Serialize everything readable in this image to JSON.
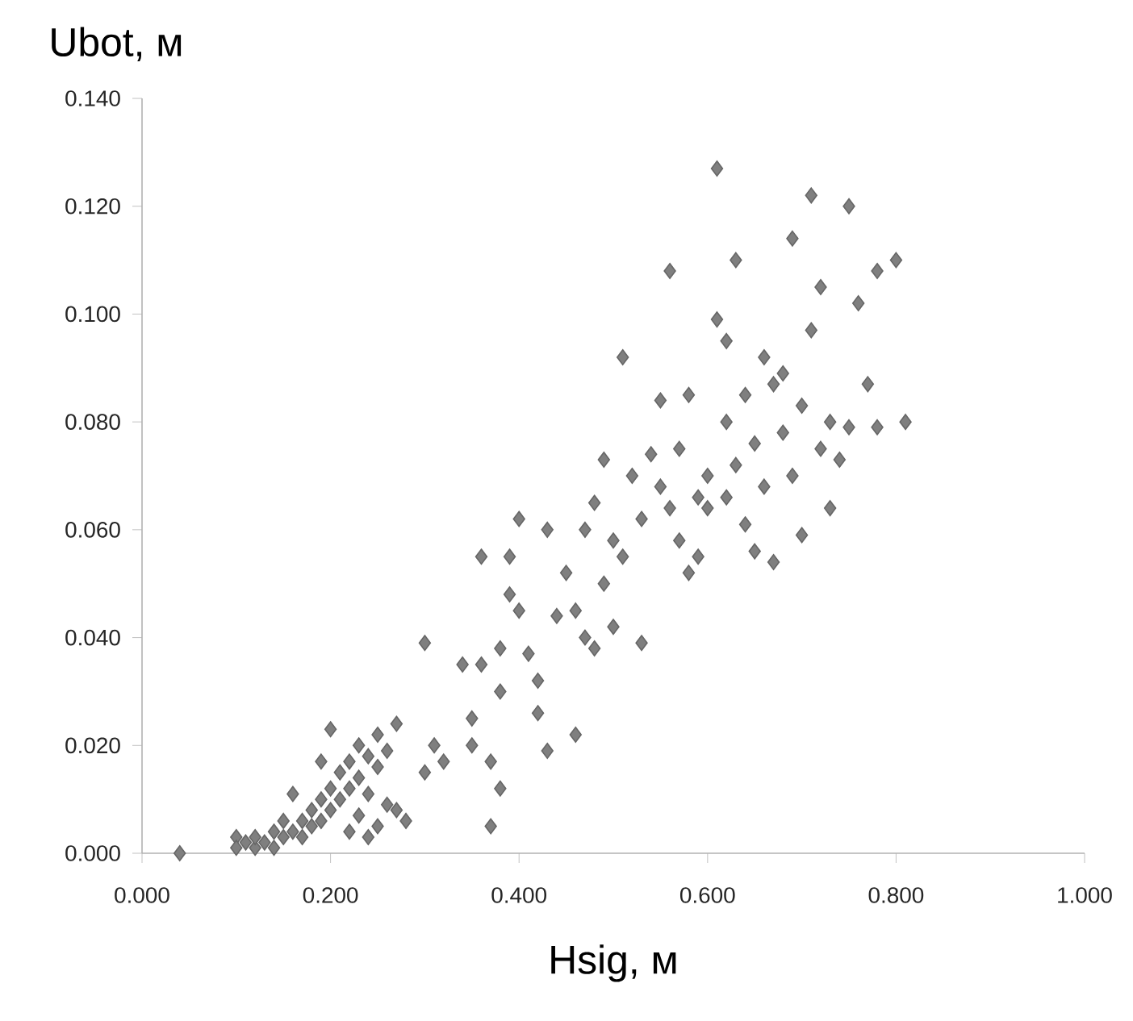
{
  "chart_data": {
    "type": "scatter",
    "xlabel": "Hsig, м",
    "ylabel": "Ubot, м",
    "color": "#7f7f7f",
    "marker": "diamond",
    "xlim": [
      0,
      1
    ],
    "ylim": [
      0,
      0.14
    ],
    "xticks": [
      {
        "value": 0,
        "label": "0.000"
      },
      {
        "value": 0.2,
        "label": "0.200"
      },
      {
        "value": 0.4,
        "label": "0.400"
      },
      {
        "value": 0.6,
        "label": "0.600"
      },
      {
        "value": 0.8,
        "label": "0.800"
      },
      {
        "value": 1,
        "label": "1.000"
      }
    ],
    "yticks": [
      {
        "value": 0,
        "label": "0.000"
      },
      {
        "value": 0.02,
        "label": "0.020"
      },
      {
        "value": 0.04,
        "label": "0.040"
      },
      {
        "value": 0.06,
        "label": "0.060"
      },
      {
        "value": 0.08,
        "label": "0.080"
      },
      {
        "value": 0.1,
        "label": "0.100"
      },
      {
        "value": 0.12,
        "label": "0.120"
      },
      {
        "value": 0.14,
        "label": "0.140"
      }
    ],
    "x": [
      0.04,
      0.1,
      0.1,
      0.11,
      0.12,
      0.12,
      0.13,
      0.14,
      0.14,
      0.15,
      0.15,
      0.16,
      0.16,
      0.17,
      0.17,
      0.18,
      0.18,
      0.19,
      0.19,
      0.2,
      0.2,
      0.2,
      0.21,
      0.21,
      0.22,
      0.22,
      0.23,
      0.23,
      0.24,
      0.24,
      0.25,
      0.25,
      0.24,
      0.25,
      0.26,
      0.26,
      0.27,
      0.27,
      0.28,
      0.23,
      0.22,
      0.19,
      0.3,
      0.3,
      0.31,
      0.32,
      0.34,
      0.35,
      0.35,
      0.36,
      0.36,
      0.37,
      0.38,
      0.37,
      0.38,
      0.38,
      0.39,
      0.39,
      0.4,
      0.4,
      0.41,
      0.42,
      0.42,
      0.43,
      0.43,
      0.44,
      0.45,
      0.46,
      0.46,
      0.47,
      0.47,
      0.48,
      0.48,
      0.49,
      0.49,
      0.5,
      0.5,
      0.51,
      0.51,
      0.52,
      0.53,
      0.53,
      0.54,
      0.55,
      0.55,
      0.56,
      0.56,
      0.57,
      0.57,
      0.58,
      0.58,
      0.59,
      0.59,
      0.6,
      0.6,
      0.61,
      0.61,
      0.62,
      0.62,
      0.62,
      0.63,
      0.63,
      0.64,
      0.64,
      0.65,
      0.65,
      0.66,
      0.66,
      0.67,
      0.67,
      0.68,
      0.68,
      0.69,
      0.69,
      0.7,
      0.7,
      0.71,
      0.71,
      0.72,
      0.72,
      0.73,
      0.73,
      0.74,
      0.75,
      0.75,
      0.76,
      0.77,
      0.78,
      0.78,
      0.8,
      0.81
    ],
    "values": [
      0.0,
      0.003,
      0.001,
      0.002,
      0.001,
      0.003,
      0.002,
      0.004,
      0.001,
      0.003,
      0.006,
      0.004,
      0.011,
      0.006,
      0.003,
      0.008,
      0.005,
      0.01,
      0.006,
      0.012,
      0.008,
      0.023,
      0.015,
      0.01,
      0.017,
      0.012,
      0.014,
      0.02,
      0.018,
      0.011,
      0.022,
      0.016,
      0.003,
      0.005,
      0.019,
      0.009,
      0.024,
      0.008,
      0.006,
      0.007,
      0.004,
      0.017,
      0.039,
      0.015,
      0.02,
      0.017,
      0.035,
      0.025,
      0.02,
      0.035,
      0.055,
      0.005,
      0.012,
      0.017,
      0.03,
      0.038,
      0.055,
      0.048,
      0.062,
      0.045,
      0.037,
      0.032,
      0.026,
      0.019,
      0.06,
      0.044,
      0.052,
      0.022,
      0.045,
      0.06,
      0.04,
      0.038,
      0.065,
      0.05,
      0.073,
      0.042,
      0.058,
      0.092,
      0.055,
      0.07,
      0.039,
      0.062,
      0.074,
      0.068,
      0.084,
      0.108,
      0.064,
      0.058,
      0.075,
      0.052,
      0.085,
      0.066,
      0.055,
      0.07,
      0.064,
      0.127,
      0.099,
      0.095,
      0.066,
      0.08,
      0.11,
      0.072,
      0.061,
      0.085,
      0.076,
      0.056,
      0.092,
      0.068,
      0.087,
      0.054,
      0.078,
      0.089,
      0.114,
      0.07,
      0.059,
      0.083,
      0.097,
      0.122,
      0.105,
      0.075,
      0.064,
      0.08,
      0.073,
      0.12,
      0.079,
      0.102,
      0.087,
      0.108,
      0.079,
      0.11,
      0.08
    ]
  }
}
